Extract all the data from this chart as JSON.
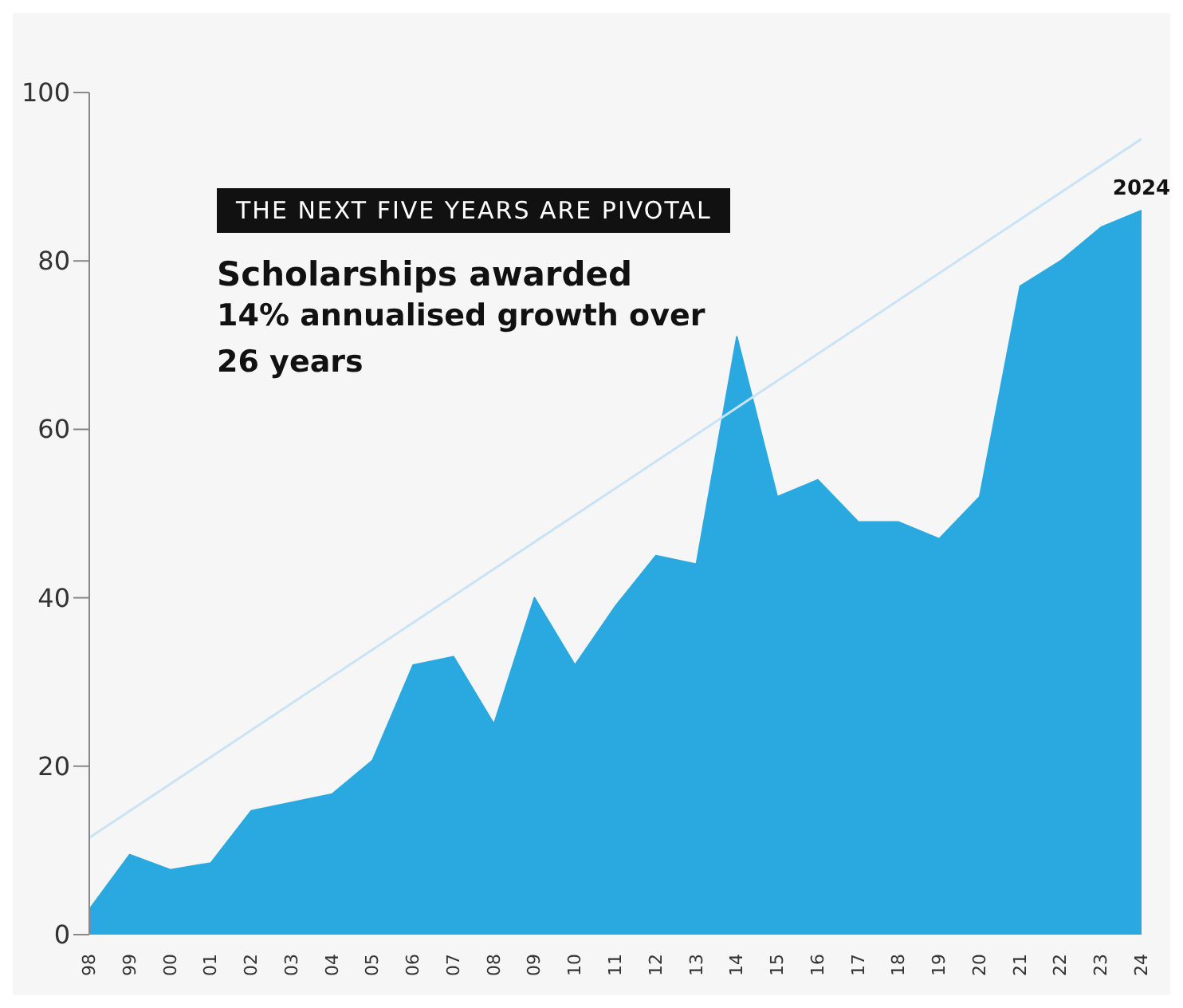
{
  "chart_data": {
    "type": "area",
    "title": "Scholarships awarded",
    "subtitle": "14% annualised growth over 26 years",
    "annotations": [
      "THE NEXT FIVE YEARS ARE PIVOTAL",
      {
        "text": "2024",
        "x": 2024,
        "y": 86
      }
    ],
    "x": [
      1998,
      1999,
      2000,
      2001,
      2002,
      2003,
      2004,
      2005,
      2006,
      2007,
      2008,
      2009,
      2010,
      2011,
      2012,
      2013,
      2014,
      2015,
      2016,
      2017,
      2018,
      2019,
      2020,
      2021,
      2022,
      2023,
      2024
    ],
    "series": [
      {
        "color": "#2aa9e0",
        "values": [
          3,
          9.5,
          7.7,
          8.5,
          14.7,
          15.7,
          16.7,
          20.7,
          32,
          33,
          25,
          40,
          32,
          39,
          45,
          44,
          71,
          52,
          54,
          49,
          49,
          47,
          52,
          77,
          80,
          84,
          86
        ]
      },
      {
        "type": "line",
        "color": "#c9e3f5",
        "x": [
          1998,
          2024
        ],
        "values": [
          11.5,
          94.5
        ]
      }
    ],
    "xlim": [
      1998,
      2024
    ],
    "xticks": [
      {
        "value": 1998,
        "label": "98"
      },
      {
        "value": 1999,
        "label": "99"
      },
      {
        "value": 2000,
        "label": "00"
      },
      {
        "value": 2001,
        "label": "01"
      },
      {
        "value": 2002,
        "label": "02"
      },
      {
        "value": 2003,
        "label": "03"
      },
      {
        "value": 2004,
        "label": "04"
      },
      {
        "value": 2005,
        "label": "05"
      },
      {
        "value": 2006,
        "label": "06"
      },
      {
        "value": 2007,
        "label": "07"
      },
      {
        "value": 2008,
        "label": "08"
      },
      {
        "value": 2009,
        "label": "09"
      },
      {
        "value": 2010,
        "label": "10"
      },
      {
        "value": 2011,
        "label": "11"
      },
      {
        "value": 2012,
        "label": "12"
      },
      {
        "value": 2013,
        "label": "13"
      },
      {
        "value": 2014,
        "label": "14"
      },
      {
        "value": 2015,
        "label": "15"
      },
      {
        "value": 2016,
        "label": "16"
      },
      {
        "value": 2017,
        "label": "17"
      },
      {
        "value": 2018,
        "label": "18"
      },
      {
        "value": 2019,
        "label": "19"
      },
      {
        "value": 2020,
        "label": "20"
      },
      {
        "value": 2021,
        "label": "21"
      },
      {
        "value": 2022,
        "label": "22"
      },
      {
        "value": 2023,
        "label": "23"
      },
      {
        "value": 2024,
        "label": "24"
      }
    ],
    "ylim": [
      0,
      100
    ],
    "yticks": [
      0,
      20,
      40,
      60,
      80,
      100
    ],
    "grid": false,
    "legend": false,
    "marker": "none",
    "line_style": "solid"
  }
}
